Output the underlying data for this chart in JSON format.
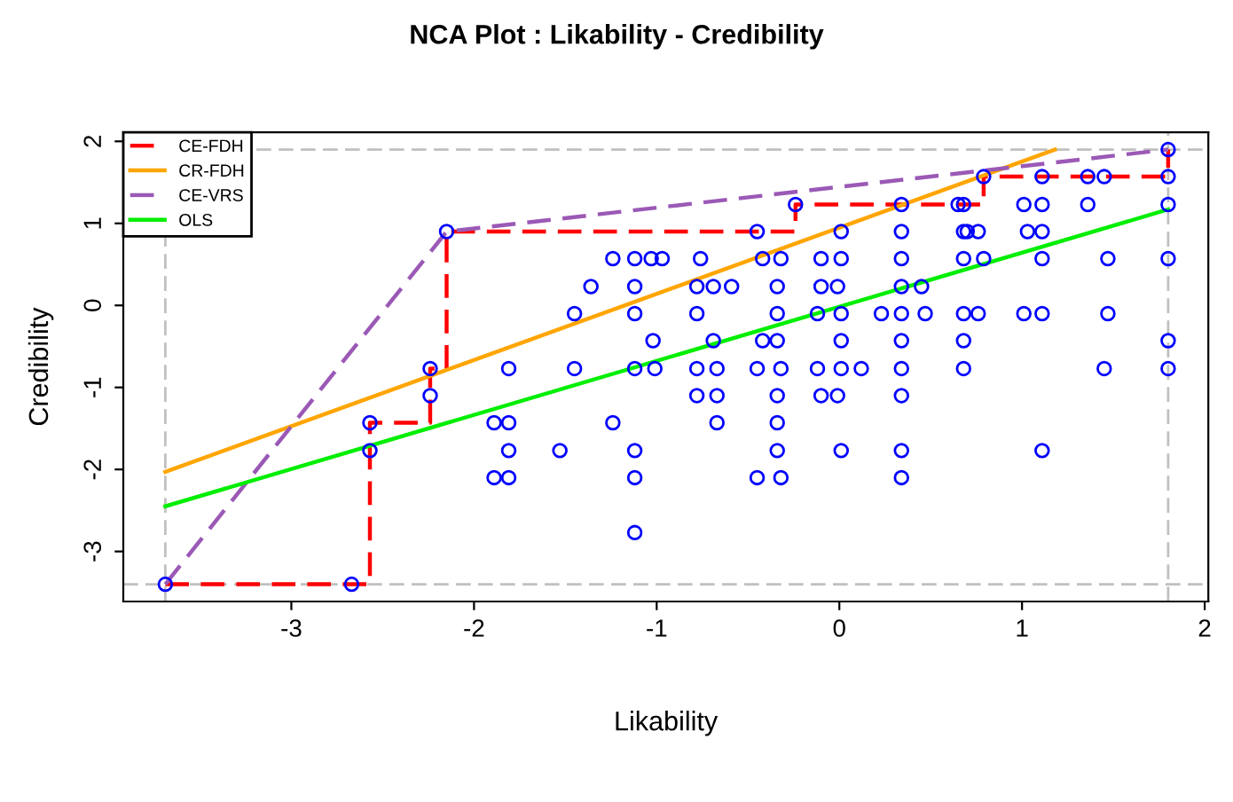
{
  "chart_data": {
    "type": "scatter",
    "title": "NCA Plot : Likability - Credibility",
    "xlabel": "Likability",
    "ylabel": "Credibility",
    "xlim": [
      -3.92,
      2.02
    ],
    "ylim": [
      -3.61,
      2.11
    ],
    "xticks": [
      -3,
      -2,
      -1,
      0,
      1,
      2
    ],
    "yticks": [
      -3,
      -2,
      -1,
      0,
      1,
      2
    ],
    "grid": false,
    "legend": "top left",
    "ref_lines": [
      {
        "axis": "x",
        "value": -3.69,
        "color": "#c0c0c0",
        "line_style": "dashed"
      },
      {
        "axis": "x",
        "value": 1.8,
        "color": "#c0c0c0",
        "line_style": "dashed"
      },
      {
        "axis": "y",
        "value": -3.4,
        "color": "#c0c0c0",
        "line_style": "dashed"
      },
      {
        "axis": "y",
        "value": 1.9,
        "color": "#c0c0c0",
        "line_style": "dashed"
      }
    ],
    "series": [
      {
        "color": "#0000ff",
        "marker": "circle",
        "x": [
          -3.69,
          -2.67,
          -2.57,
          -2.57,
          -2.24,
          -2.24,
          -2.15,
          -1.89,
          -1.89,
          -1.81,
          -1.81,
          -1.81,
          -1.81,
          -1.53,
          -1.45,
          -1.45,
          -1.36,
          -1.24,
          -1.24,
          -1.12,
          -1.12,
          -1.12,
          -1.12,
          -1.12,
          -1.12,
          -1.12,
          -1.03,
          -1.02,
          -1.01,
          -0.97,
          -0.78,
          -0.78,
          -0.78,
          -0.78,
          -0.76,
          -0.69,
          -0.69,
          -0.67,
          -0.67,
          -0.67,
          -0.59,
          -0.45,
          -0.45,
          -0.45,
          -0.42,
          -0.42,
          -0.34,
          -0.34,
          -0.34,
          -0.34,
          -0.34,
          -0.34,
          -0.32,
          -0.32,
          -0.32,
          -0.24,
          -0.12,
          -0.12,
          -0.1,
          -0.1,
          -0.1,
          -0.01,
          -0.01,
          0.01,
          0.01,
          0.01,
          0.01,
          0.01,
          0.01,
          0.12,
          0.23,
          0.34,
          0.34,
          0.34,
          0.34,
          0.34,
          0.34,
          0.34,
          0.34,
          0.34,
          0.34,
          0.45,
          0.47,
          0.65,
          0.68,
          0.68,
          0.68,
          0.68,
          0.68,
          0.68,
          0.7,
          0.76,
          0.76,
          0.79,
          0.79,
          1.01,
          1.01,
          1.03,
          1.11,
          1.11,
          1.11,
          1.11,
          1.11,
          1.11,
          1.36,
          1.36,
          1.45,
          1.45,
          1.47,
          1.47,
          1.8,
          1.8,
          1.8,
          1.8,
          1.8,
          1.8
        ],
        "values": [
          -3.4,
          -3.4,
          -1.43,
          -1.77,
          -0.77,
          -1.1,
          0.9,
          -1.43,
          -2.1,
          -0.77,
          -1.43,
          -1.77,
          -2.1,
          -1.77,
          -0.1,
          -0.77,
          0.23,
          0.57,
          -1.43,
          0.57,
          0.23,
          -0.1,
          -0.77,
          -1.77,
          -2.1,
          -2.77,
          0.57,
          -0.43,
          -0.77,
          0.57,
          0.23,
          -0.1,
          -0.77,
          -1.1,
          0.57,
          0.23,
          -0.43,
          -0.77,
          -1.1,
          -1.43,
          0.23,
          0.9,
          -0.77,
          -2.1,
          0.57,
          -0.43,
          0.23,
          -0.1,
          -0.43,
          -1.1,
          -1.43,
          -1.77,
          0.57,
          -0.77,
          -2.1,
          1.23,
          -0.1,
          -0.77,
          0.57,
          0.23,
          -1.1,
          0.23,
          -1.1,
          0.9,
          0.57,
          -0.1,
          -0.43,
          -0.77,
          -1.77,
          -0.77,
          -0.1,
          1.23,
          0.9,
          0.57,
          0.23,
          -0.1,
          -0.43,
          -0.77,
          -1.1,
          -1.77,
          -2.1,
          0.23,
          -0.1,
          1.23,
          1.23,
          0.9,
          0.57,
          -0.1,
          -0.43,
          -0.77,
          0.9,
          0.9,
          -0.1,
          1.57,
          0.57,
          1.23,
          -0.1,
          0.9,
          1.57,
          1.23,
          0.9,
          0.57,
          -0.1,
          -1.77,
          1.57,
          1.23,
          1.57,
          -0.77,
          0.57,
          -0.1,
          1.9,
          1.57,
          1.23,
          0.57,
          -0.43,
          -0.77
        ]
      },
      {
        "type": "line",
        "name": "CE-FDH",
        "color": "#ff0000",
        "line_style": "dashed",
        "x": [
          -3.69,
          -2.57,
          -2.57,
          -2.24,
          -2.24,
          -2.15,
          -2.15,
          -0.24,
          -0.24,
          0.79,
          0.79,
          1.8,
          1.8
        ],
        "values": [
          -3.4,
          -3.4,
          -1.43,
          -1.43,
          -0.77,
          -0.77,
          0.9,
          0.9,
          1.23,
          1.23,
          1.57,
          1.57,
          1.9
        ]
      },
      {
        "type": "line",
        "name": "CR-FDH",
        "color": "#ffa500",
        "line_style": "solid",
        "x": [
          -3.69,
          1.18
        ],
        "values": [
          -2.03,
          1.9
        ]
      },
      {
        "type": "line",
        "name": "CE-VRS",
        "color": "#9b59b6",
        "line_style": "dashed",
        "x": [
          -3.69,
          -2.15,
          1.8
        ],
        "values": [
          -3.4,
          0.9,
          1.9
        ]
      },
      {
        "type": "line",
        "name": "OLS",
        "color": "#00ee00",
        "line_style": "solid",
        "x": [
          -3.69,
          1.8
        ],
        "values": [
          -2.45,
          1.17
        ]
      }
    ]
  }
}
